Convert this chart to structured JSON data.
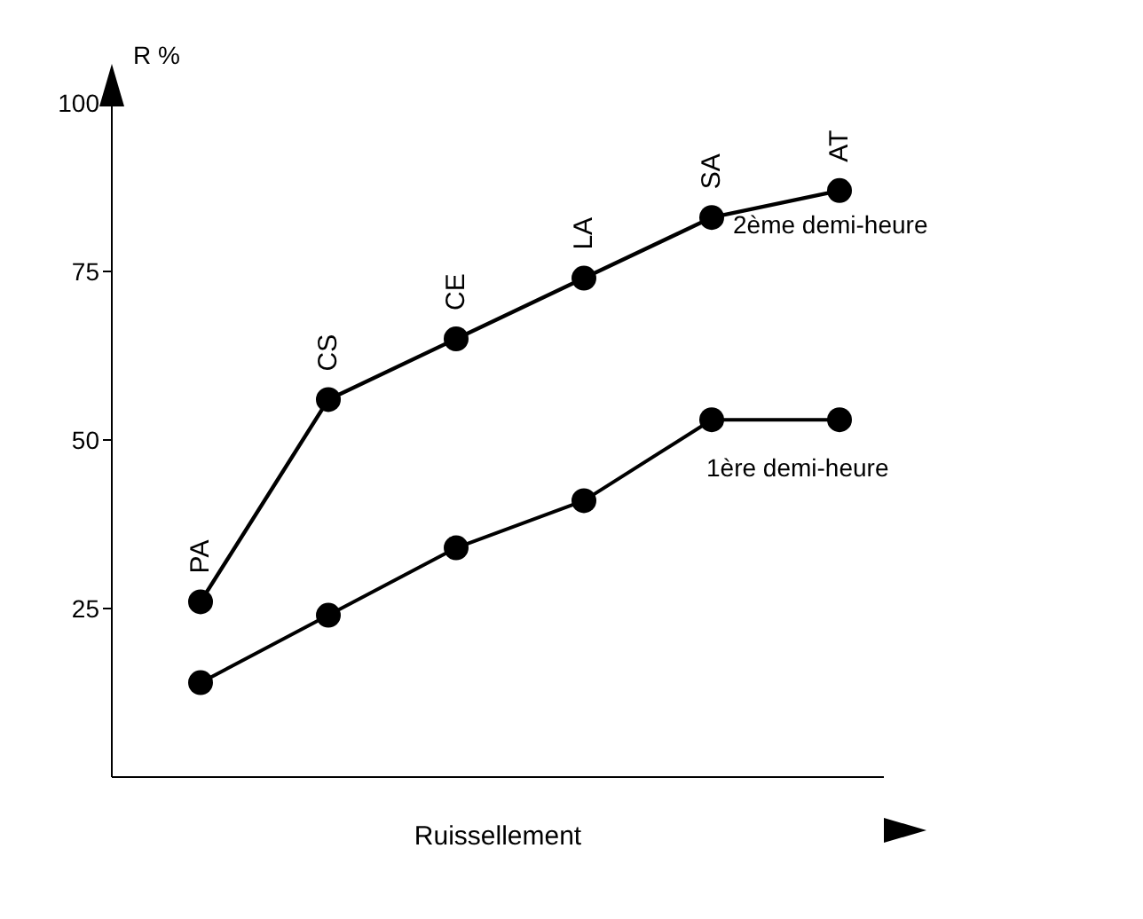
{
  "chart_data": {
    "type": "line",
    "xlabel": "Ruissellement",
    "ylabel": "R %",
    "categories": [
      "PA",
      "CS",
      "CE",
      "LA",
      "SA",
      "AT"
    ],
    "series": [
      {
        "name": "2ème demi-heure",
        "color": "#000000",
        "values": [
          26,
          56,
          65,
          74,
          83,
          87
        ]
      },
      {
        "name": "1ère demi-heure",
        "color": "#000000",
        "values": [
          14,
          24,
          34,
          41,
          53,
          53
        ]
      }
    ],
    "ylim": [
      0,
      100
    ],
    "yticks": [
      25,
      50,
      75,
      100
    ],
    "grid": false,
    "legend": false,
    "marker": "circle",
    "line_style": "solid",
    "tick_labels": "y"
  }
}
